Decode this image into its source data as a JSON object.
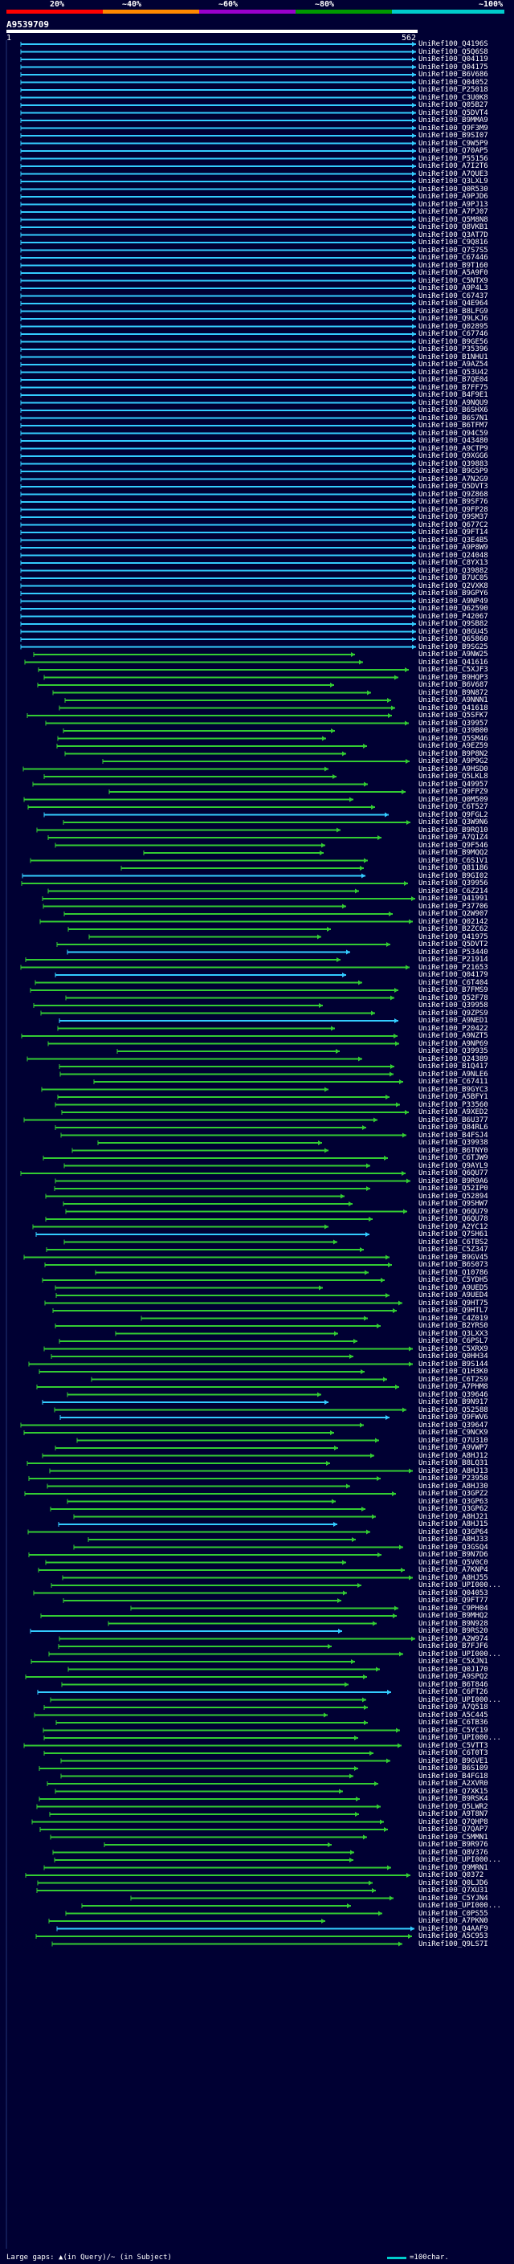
{
  "header": {
    "percent_ticks": [
      "20%",
      "~40%",
      "~60%",
      "~80%",
      "~100%"
    ],
    "colors": [
      "#ff0000",
      "#ff8800",
      "#9900cc",
      "#009900",
      "#00cccc"
    ],
    "query_id": "A9539709",
    "ruler_start": "1",
    "ruler_end": "562"
  },
  "hits": [
    "UniRef100_Q4196S",
    "UniRef100_Q5Q6S8",
    "UniRef100_Q04119",
    "UniRef100_Q04175",
    "UniRef100_B6V686",
    "UniRef100_Q04052",
    "UniRef100_P25018",
    "UniRef100_C3U0K8",
    "UniRef100_Q05B27",
    "UniRef100_Q5DVT4",
    "UniRef100_B9MMA9",
    "UniRef100_Q9F3M9",
    "UniRef100_B9SI07",
    "UniRef100_C9W5P9",
    "UniRef100_Q70AP5",
    "UniRef100_P55156",
    "UniRef100_A7I2T6",
    "UniRef100_A7QUE3",
    "UniRef100_Q3LXL9",
    "UniRef100_Q0R530",
    "UniRef100_A9PJD6",
    "UniRef100_A9PJ13",
    "UniRef100_A7PJ07",
    "UniRef100_Q5M8N8",
    "UniRef100_Q8VKB1",
    "UniRef100_Q3AT7D",
    "UniRef100_C9Q816",
    "UniRef100_Q7S7S5",
    "UniRef100_C67446",
    "UniRef100_B9T160",
    "UniRef100_A5A9F0",
    "UniRef100_C5NTX9",
    "UniRef100_A9P4L3",
    "UniRef100_C67437",
    "UniRef100_Q4E964",
    "UniRef100_B8LFG9",
    "UniRef100_Q9LKJ6",
    "UniRef100_Q02895",
    "UniRef100_C67746",
    "UniRef100_B9GE56",
    "UniRef100_P35396",
    "UniRef100_B1NHU1",
    "UniRef100_A9AZ54",
    "UniRef100_Q53U42",
    "UniRef100_B7QE04",
    "UniRef100_B7FF75",
    "UniRef100_B4F9E1",
    "UniRef100_A9NQU9",
    "UniRef100_B6SHX6",
    "UniRef100_B6S7N1",
    "UniRef100_B6TFM7",
    "UniRef100_Q94C59",
    "UniRef100_Q43480",
    "UniRef100_A9CTP9",
    "UniRef100_Q9XGG6",
    "UniRef100_Q39883",
    "UniRef100_B9G5P9",
    "UniRef100_A7N2G9",
    "UniRef100_Q5DVT3",
    "UniRef100_Q9Z868",
    "UniRef100_B9SF76",
    "UniRef100_Q9FP28",
    "UniRef100_Q9SM37",
    "UniRef100_Q677C2",
    "UniRef100_Q9FT14",
    "UniRef100_Q3E4B5",
    "UniRef100_A9P8W9",
    "UniRef100_Q24048",
    "UniRef100_C8YX13",
    "UniRef100_Q39882",
    "UniRef100_B7UC05",
    "UniRef100_Q2VXK8",
    "UniRef100_B9GPY6",
    "UniRef100_A9NP49",
    "UniRef100_Q62590",
    "UniRef100_P42067",
    "UniRef100_Q9SB82",
    "UniRef100_Q8GU45",
    "UniRef100_Q65860",
    "UniRef100_B9SG25",
    "UniRef100_A9NW25",
    "UniRef100_Q41616",
    "UniRef100_C5XJF3",
    "UniRef100_B9HQP3",
    "UniRef100_B6V687",
    "UniRef100_B9N872",
    "UniRef100_A9NNN1",
    "UniRef100_Q41618",
    "UniRef100_Q5SFK7",
    "UniRef100_Q39957",
    "UniRef100_Q39B00",
    "UniRef100_Q5SM46",
    "UniRef100_A9EZ59",
    "UniRef100_B9P8N2",
    "UniRef100_A9P9G2",
    "UniRef100_A9HSD0",
    "UniRef100_Q5LKL8",
    "UniRef100_Q49957",
    "UniRef100_Q9FPZ9",
    "UniRef100_Q0M509",
    "UniRef100_C6T527",
    "UniRef100_Q9FGL2",
    "UniRef100_Q3W9N6",
    "UniRef100_B9RQ10",
    "UniRef100_A7Q1Z4",
    "UniRef100_Q9F546",
    "UniRef100_B9MQQ2",
    "UniRef100_C6S1V1",
    "UniRef100_Q81186",
    "UniRef100_B9GI02",
    "UniRef100_Q39956",
    "UniRef100_C6Z214",
    "UniRef100_Q41991",
    "UniRef100_P37706",
    "UniRef100_Q2W907",
    "UniRef100_Q02142",
    "UniRef100_B2ZC62",
    "UniRef100_Q41975",
    "UniRef100_Q5DVT2",
    "UniRef100_P53440",
    "UniRef100_P21914",
    "UniRef100_P21653",
    "UniRef100_Q04179",
    "UniRef100_C6T404",
    "UniRef100_B7FMS9",
    "UniRef100_Q52F78",
    "UniRef100_Q39958",
    "UniRef100_Q9ZPS9",
    "UniRef100_A9NED1",
    "UniRef100_P20422",
    "UniRef100_A9NZT5",
    "UniRef100_A9NP69",
    "UniRef100_Q39935",
    "UniRef100_Q24389",
    "UniRef100_B1Q417",
    "UniRef100_A9NLE6",
    "UniRef100_C67411",
    "UniRef100_B9GYC3",
    "UniRef100_A5BFY1",
    "UniRef100_P33560",
    "UniRef100_A9XED2",
    "UniRef100_B6U377",
    "UniRef100_Q84RL6",
    "UniRef100_B4FSJ4",
    "UniRef100_Q39938",
    "UniRef100_B6TNY0",
    "UniRef100_C6TJW9",
    "UniRef100_Q9AYL9",
    "UniRef100_Q6QU77",
    "UniRef100_B9R9A6",
    "UniRef100_Q52IP0",
    "UniRef100_Q52894",
    "UniRef100_Q9SHW7",
    "UniRef100_Q6QU79",
    "UniRef100_Q6QU78",
    "UniRef100_A2YC12",
    "UniRef100_Q7SH61",
    "UniRef100_C6TBS2",
    "UniRef100_C5Z347",
    "UniRef100_B9GV45",
    "UniRef100_B6S073",
    "UniRef100_Q10786",
    "UniRef100_C5YDH5",
    "UniRef100_A9UED5",
    "UniRef100_A9UED4",
    "UniRef100_Q9HT75",
    "UniRef100_Q9HTL7",
    "UniRef100_C4Z019",
    "UniRef100_B2YRS0",
    "UniRef100_Q3LXX3",
    "UniRef100_C6PSL7",
    "UniRef100_C5XRX9",
    "UniRef100_Q0HH34",
    "UniRef100_B9S144",
    "UniRef100_Q1H3K0",
    "UniRef100_C6T2S9",
    "UniRef100_A7PHM8",
    "UniRef100_Q39646",
    "UniRef100_B9N917",
    "UniRef100_Q52588",
    "UniRef100_Q9FWV6",
    "UniRef100_Q39647",
    "UniRef100_C9NCK9",
    "UniRef100_Q7U310",
    "UniRef100_A9VWP7",
    "UniRef100_A8HJ12",
    "UniRef100_B8LQ31",
    "UniRef100_A8HJ13",
    "UniRef100_P23958",
    "UniRef100_A8HJ30",
    "UniRef100_Q3GPZ2",
    "UniRef100_Q3GP63",
    "UniRef100_Q3GP62",
    "UniRef100_A8HJ21",
    "UniRef100_A8HJ15",
    "UniRef100_Q3GP64",
    "UniRef100_A8HJ33",
    "UniRef100_Q3GSQ4",
    "UniRef100_B9N7D6",
    "UniRef100_Q5V0C0",
    "UniRef100_A7KNP4",
    "UniRef100_A8HJ55",
    "UniRef100_UPI000...",
    "UniRef100_Q04053",
    "UniRef100_Q9FT77",
    "UniRef100_C9PH04",
    "UniRef100_B9MHQ2",
    "UniRef100_B9N928",
    "UniRef100_B9RS20",
    "UniRef100_A2W974",
    "UniRef100_B7FJF6",
    "UniRef100_UPI000...",
    "UniRef100_C5XJN1",
    "UniRef100_Q0J170",
    "UniRef100_A9SPQ2",
    "UniRef100_B6T846",
    "UniRef100_C6FT26",
    "UniRef100_UPI000...",
    "UniRef100_A7Q518",
    "UniRef100_A5C445",
    "UniRef100_C6TB36",
    "UniRef100_C5YC19",
    "UniRef100_UPI000...",
    "UniRef100_C5VTT3",
    "UniRef100_C6T0T3",
    "UniRef100_B9GVE1",
    "UniRef100_B6S109",
    "UniRef100_B4FG18",
    "UniRef100_A2XVR0",
    "UniRef100_Q7XK15",
    "UniRef100_B9RSK4",
    "UniRef100_Q5LWR2",
    "UniRef100_A9T8N7",
    "UniRef100_Q7QHP8",
    "UniRef100_Q7QAP7",
    "UniRef100_C5MMN1",
    "UniRef100_B9R976",
    "UniRef100_Q8V376",
    "UniRef100_UPI000...",
    "UniRef100_Q9MRN1",
    "UniRef100_Q0372",
    "UniRef100_Q0LJD6",
    "UniRef100_Q7XU31",
    "UniRef100_C5YJN4",
    "UniRef100_UPI000...",
    "UniRef100_C0PS55",
    "UniRef100_A7PKN0",
    "UniRef100_Q4AAF9",
    "UniRef100_A5C953",
    "UniRef100_Q9LS7I"
  ],
  "footer": {
    "legend_text": "Large gaps: ▲(in Query)/~ (in Subject)",
    "scale_text": "=100char."
  }
}
